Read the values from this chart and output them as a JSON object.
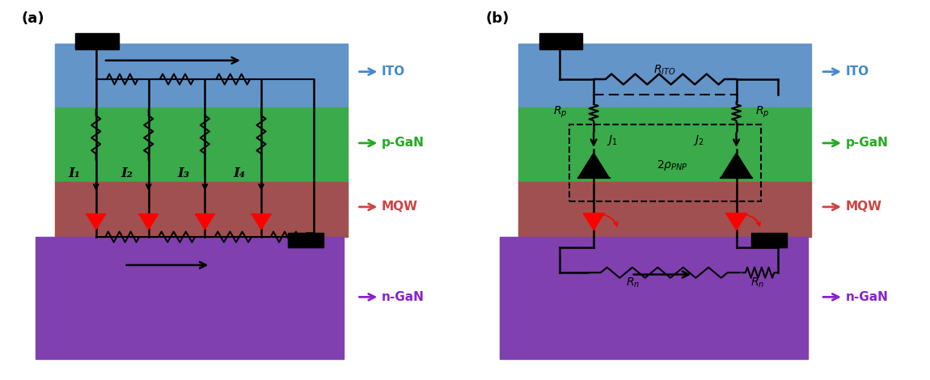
{
  "fig_width": 11.5,
  "fig_height": 4.7,
  "dpi": 100,
  "bg_color": "#ffffff",
  "ito_color": "#6495c8",
  "pgan_color": "#3aaa4a",
  "mqw_color": "#a05050",
  "ngan_color": "#8040b0",
  "label_ito_color": "#4488cc",
  "label_pgan_color": "#22aa22",
  "label_mqw_color": "#cc4444",
  "label_ngan_color": "#8822cc",
  "panel_a_label": "(a)",
  "panel_b_label": "(b)",
  "ito_label": "ITO",
  "pgan_label": "p-GaN",
  "mqw_label": "MQW",
  "ngan_label": "n-GaN",
  "current_labels": [
    "I₁",
    "I₂",
    "I₃",
    "I₄"
  ]
}
